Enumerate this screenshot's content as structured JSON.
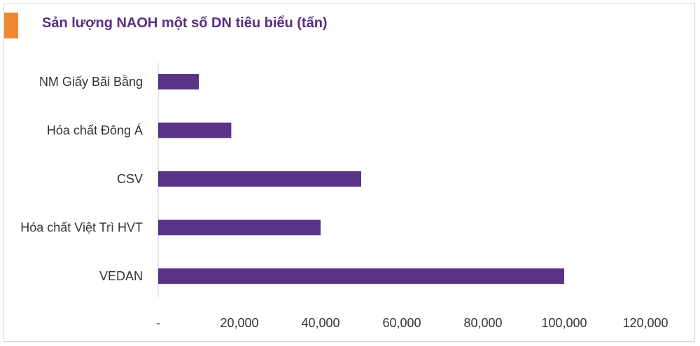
{
  "title": "Sản lượng NAOH một số DN tiêu biểu (tấn)",
  "colors": {
    "accent": "#EF8933",
    "bar": "#5A3286",
    "title": "#5A2D82",
    "text": "#333333"
  },
  "chart_data": {
    "type": "bar",
    "orientation": "horizontal",
    "title": "Sản lượng NAOH một số DN tiêu biểu (tấn)",
    "categories": [
      "NM Giấy Bãi Bằng",
      "Hóa chất Đông Á",
      "CSV",
      "Hóa chất Việt Trì HVT",
      "VEDAN"
    ],
    "values": [
      10000,
      18000,
      50000,
      40000,
      100000
    ],
    "xlim": [
      0,
      120000
    ],
    "xticks": [
      0,
      20000,
      40000,
      60000,
      80000,
      100000,
      120000
    ],
    "xtick_labels": [
      "-",
      "20,000",
      "40,000",
      "60,000",
      "80,000",
      "100,000",
      "120,000"
    ],
    "grid": false,
    "legend": "none"
  }
}
